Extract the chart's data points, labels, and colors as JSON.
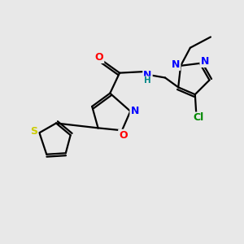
{
  "background_color": "#e8e8e8",
  "bond_color": "#000000",
  "atom_colors": {
    "O": "#ff0000",
    "N": "#0000ff",
    "S": "#cccc00",
    "Cl": "#008800",
    "C": "#000000",
    "H": "#008888"
  },
  "figsize": [
    3.0,
    3.0
  ],
  "dpi": 100
}
